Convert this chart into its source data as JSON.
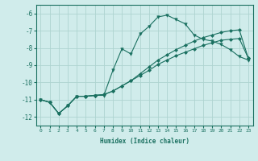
{
  "xlabel": "Humidex (Indice chaleur)",
  "bg_color": "#d0eceb",
  "grid_color": "#aed4d0",
  "line_color": "#1a7060",
  "xlim": [
    -0.5,
    23.5
  ],
  "ylim": [
    -12.5,
    -5.5
  ],
  "yticks": [
    -12,
    -11,
    -10,
    -9,
    -8,
    -7,
    -6
  ],
  "xticks": [
    0,
    1,
    2,
    3,
    4,
    5,
    6,
    7,
    8,
    9,
    10,
    11,
    12,
    13,
    14,
    15,
    16,
    17,
    18,
    19,
    20,
    21,
    22,
    23
  ],
  "series1_x": [
    0,
    1,
    2,
    3,
    4,
    5,
    6,
    7,
    8,
    9,
    10,
    11,
    12,
    13,
    14,
    15,
    16,
    17,
    18,
    19,
    20,
    21,
    22,
    23
  ],
  "series1_y": [
    -11.0,
    -11.15,
    -11.8,
    -11.35,
    -10.8,
    -10.8,
    -10.75,
    -10.75,
    -9.3,
    -8.05,
    -8.35,
    -7.2,
    -6.75,
    -6.2,
    -6.1,
    -6.35,
    -6.6,
    -7.25,
    -7.5,
    -7.6,
    -7.8,
    -8.1,
    -8.5,
    -8.7
  ],
  "series2_x": [
    0,
    1,
    2,
    3,
    4,
    5,
    6,
    7,
    8,
    9,
    10,
    11,
    12,
    13,
    14,
    15,
    16,
    17,
    18,
    19,
    20,
    21,
    22,
    23
  ],
  "series2_y": [
    -11.0,
    -11.15,
    -11.8,
    -11.35,
    -10.8,
    -10.8,
    -10.75,
    -10.7,
    -10.5,
    -10.2,
    -9.9,
    -9.6,
    -9.3,
    -8.95,
    -8.7,
    -8.45,
    -8.25,
    -8.05,
    -7.85,
    -7.7,
    -7.55,
    -7.5,
    -7.45,
    -8.6
  ],
  "series3_x": [
    0,
    1,
    2,
    3,
    4,
    5,
    6,
    7,
    8,
    9,
    10,
    11,
    12,
    13,
    14,
    15,
    16,
    17,
    18,
    19,
    20,
    21,
    22,
    23
  ],
  "series3_y": [
    -11.0,
    -11.15,
    -11.8,
    -11.35,
    -10.8,
    -10.8,
    -10.75,
    -10.7,
    -10.5,
    -10.2,
    -9.9,
    -9.5,
    -9.1,
    -8.7,
    -8.4,
    -8.1,
    -7.85,
    -7.6,
    -7.4,
    -7.25,
    -7.1,
    -7.0,
    -6.95,
    -8.6
  ]
}
